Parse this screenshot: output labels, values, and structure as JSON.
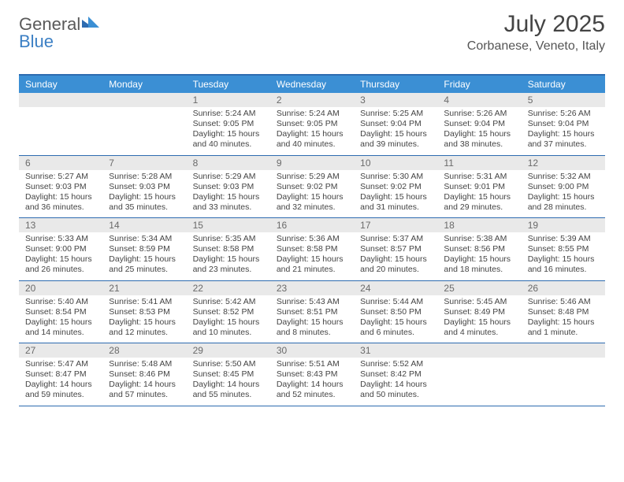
{
  "brand": {
    "part1": "General",
    "part2": "Blue"
  },
  "title": "July 2025",
  "subtitle": "Corbanese, Veneto, Italy",
  "colors": {
    "header_bg": "#3b8fd4",
    "header_text": "#ffffff",
    "rule": "#2d6bb0",
    "daynum_bg": "#e9e9e9",
    "daynum_text": "#6a6a6a",
    "body_text": "#444444"
  },
  "day_names": [
    "Sunday",
    "Monday",
    "Tuesday",
    "Wednesday",
    "Thursday",
    "Friday",
    "Saturday"
  ],
  "weeks": [
    [
      {
        "n": "",
        "lines": []
      },
      {
        "n": "",
        "lines": []
      },
      {
        "n": "1",
        "lines": [
          "Sunrise: 5:24 AM",
          "Sunset: 9:05 PM",
          "Daylight: 15 hours and 40 minutes."
        ]
      },
      {
        "n": "2",
        "lines": [
          "Sunrise: 5:24 AM",
          "Sunset: 9:05 PM",
          "Daylight: 15 hours and 40 minutes."
        ]
      },
      {
        "n": "3",
        "lines": [
          "Sunrise: 5:25 AM",
          "Sunset: 9:04 PM",
          "Daylight: 15 hours and 39 minutes."
        ]
      },
      {
        "n": "4",
        "lines": [
          "Sunrise: 5:26 AM",
          "Sunset: 9:04 PM",
          "Daylight: 15 hours and 38 minutes."
        ]
      },
      {
        "n": "5",
        "lines": [
          "Sunrise: 5:26 AM",
          "Sunset: 9:04 PM",
          "Daylight: 15 hours and 37 minutes."
        ]
      }
    ],
    [
      {
        "n": "6",
        "lines": [
          "Sunrise: 5:27 AM",
          "Sunset: 9:03 PM",
          "Daylight: 15 hours and 36 minutes."
        ]
      },
      {
        "n": "7",
        "lines": [
          "Sunrise: 5:28 AM",
          "Sunset: 9:03 PM",
          "Daylight: 15 hours and 35 minutes."
        ]
      },
      {
        "n": "8",
        "lines": [
          "Sunrise: 5:29 AM",
          "Sunset: 9:03 PM",
          "Daylight: 15 hours and 33 minutes."
        ]
      },
      {
        "n": "9",
        "lines": [
          "Sunrise: 5:29 AM",
          "Sunset: 9:02 PM",
          "Daylight: 15 hours and 32 minutes."
        ]
      },
      {
        "n": "10",
        "lines": [
          "Sunrise: 5:30 AM",
          "Sunset: 9:02 PM",
          "Daylight: 15 hours and 31 minutes."
        ]
      },
      {
        "n": "11",
        "lines": [
          "Sunrise: 5:31 AM",
          "Sunset: 9:01 PM",
          "Daylight: 15 hours and 29 minutes."
        ]
      },
      {
        "n": "12",
        "lines": [
          "Sunrise: 5:32 AM",
          "Sunset: 9:00 PM",
          "Daylight: 15 hours and 28 minutes."
        ]
      }
    ],
    [
      {
        "n": "13",
        "lines": [
          "Sunrise: 5:33 AM",
          "Sunset: 9:00 PM",
          "Daylight: 15 hours and 26 minutes."
        ]
      },
      {
        "n": "14",
        "lines": [
          "Sunrise: 5:34 AM",
          "Sunset: 8:59 PM",
          "Daylight: 15 hours and 25 minutes."
        ]
      },
      {
        "n": "15",
        "lines": [
          "Sunrise: 5:35 AM",
          "Sunset: 8:58 PM",
          "Daylight: 15 hours and 23 minutes."
        ]
      },
      {
        "n": "16",
        "lines": [
          "Sunrise: 5:36 AM",
          "Sunset: 8:58 PM",
          "Daylight: 15 hours and 21 minutes."
        ]
      },
      {
        "n": "17",
        "lines": [
          "Sunrise: 5:37 AM",
          "Sunset: 8:57 PM",
          "Daylight: 15 hours and 20 minutes."
        ]
      },
      {
        "n": "18",
        "lines": [
          "Sunrise: 5:38 AM",
          "Sunset: 8:56 PM",
          "Daylight: 15 hours and 18 minutes."
        ]
      },
      {
        "n": "19",
        "lines": [
          "Sunrise: 5:39 AM",
          "Sunset: 8:55 PM",
          "Daylight: 15 hours and 16 minutes."
        ]
      }
    ],
    [
      {
        "n": "20",
        "lines": [
          "Sunrise: 5:40 AM",
          "Sunset: 8:54 PM",
          "Daylight: 15 hours and 14 minutes."
        ]
      },
      {
        "n": "21",
        "lines": [
          "Sunrise: 5:41 AM",
          "Sunset: 8:53 PM",
          "Daylight: 15 hours and 12 minutes."
        ]
      },
      {
        "n": "22",
        "lines": [
          "Sunrise: 5:42 AM",
          "Sunset: 8:52 PM",
          "Daylight: 15 hours and 10 minutes."
        ]
      },
      {
        "n": "23",
        "lines": [
          "Sunrise: 5:43 AM",
          "Sunset: 8:51 PM",
          "Daylight: 15 hours and 8 minutes."
        ]
      },
      {
        "n": "24",
        "lines": [
          "Sunrise: 5:44 AM",
          "Sunset: 8:50 PM",
          "Daylight: 15 hours and 6 minutes."
        ]
      },
      {
        "n": "25",
        "lines": [
          "Sunrise: 5:45 AM",
          "Sunset: 8:49 PM",
          "Daylight: 15 hours and 4 minutes."
        ]
      },
      {
        "n": "26",
        "lines": [
          "Sunrise: 5:46 AM",
          "Sunset: 8:48 PM",
          "Daylight: 15 hours and 1 minute."
        ]
      }
    ],
    [
      {
        "n": "27",
        "lines": [
          "Sunrise: 5:47 AM",
          "Sunset: 8:47 PM",
          "Daylight: 14 hours and 59 minutes."
        ]
      },
      {
        "n": "28",
        "lines": [
          "Sunrise: 5:48 AM",
          "Sunset: 8:46 PM",
          "Daylight: 14 hours and 57 minutes."
        ]
      },
      {
        "n": "29",
        "lines": [
          "Sunrise: 5:50 AM",
          "Sunset: 8:45 PM",
          "Daylight: 14 hours and 55 minutes."
        ]
      },
      {
        "n": "30",
        "lines": [
          "Sunrise: 5:51 AM",
          "Sunset: 8:43 PM",
          "Daylight: 14 hours and 52 minutes."
        ]
      },
      {
        "n": "31",
        "lines": [
          "Sunrise: 5:52 AM",
          "Sunset: 8:42 PM",
          "Daylight: 14 hours and 50 minutes."
        ]
      },
      {
        "n": "",
        "lines": []
      },
      {
        "n": "",
        "lines": []
      }
    ]
  ]
}
